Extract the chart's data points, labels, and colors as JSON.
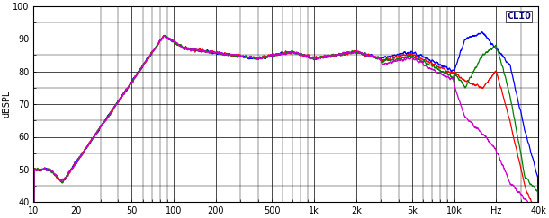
{
  "title": "CLIO",
  "ylabel": "dBSPL",
  "xlabel_ticks": [
    "10",
    "20",
    "50",
    "100",
    "200",
    "500",
    "1k",
    "2k",
    "5k",
    "10k",
    "Hz",
    "40k"
  ],
  "xlabel_vals": [
    10,
    20,
    50,
    100,
    200,
    500,
    1000,
    2000,
    5000,
    10000,
    20000,
    40000
  ],
  "xlim": [
    10,
    40000
  ],
  "ylim": [
    40,
    100
  ],
  "yticks": [
    40,
    50,
    60,
    70,
    80,
    90,
    100
  ],
  "bg_color": "#ffffff",
  "plot_bg_color": "#ffffff",
  "grid_color": "#000000",
  "line_colors": [
    "#0000ff",
    "#ff0000",
    "#008000",
    "#cc00cc"
  ],
  "line_width": 0.9,
  "figsize": [
    6.1,
    2.43
  ],
  "dpi": 100
}
